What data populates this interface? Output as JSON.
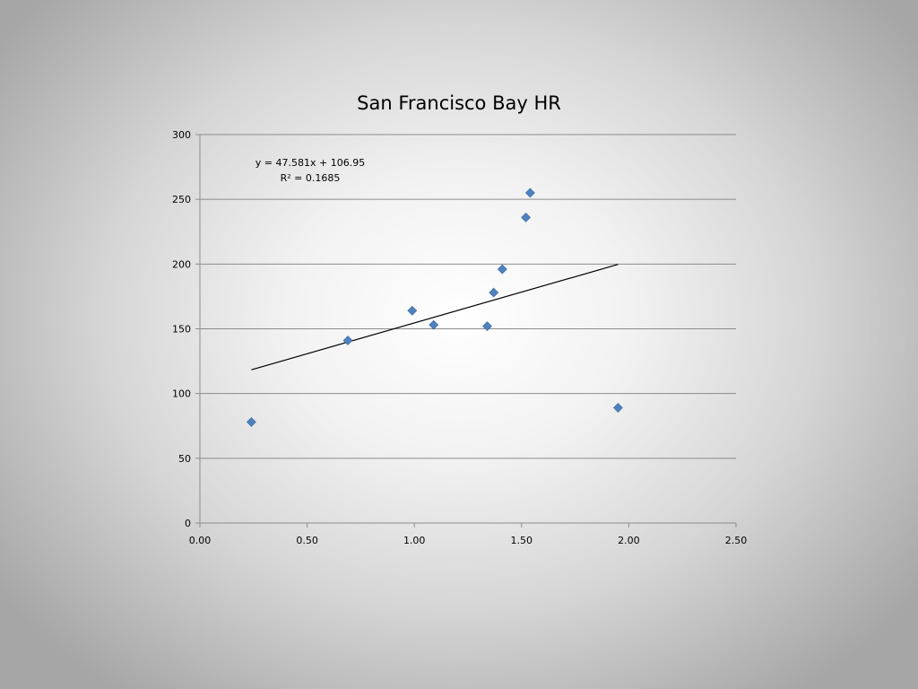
{
  "chart_data": {
    "type": "scatter",
    "title": "San Francisco Bay HR",
    "xlabel": "",
    "ylabel": "",
    "xlim": [
      0,
      2.5
    ],
    "ylim": [
      0,
      300
    ],
    "x_ticks": [
      "0.00",
      "0.50",
      "1.00",
      "1.50",
      "2.00",
      "2.50"
    ],
    "y_ticks": [
      "0",
      "50",
      "100",
      "150",
      "200",
      "250",
      "300"
    ],
    "grid": "horizontal",
    "legend": "none",
    "series": [
      {
        "color": "#4f81bd",
        "marker": "diamond",
        "points": [
          {
            "x": 0.24,
            "y": 78
          },
          {
            "x": 0.69,
            "y": 141
          },
          {
            "x": 0.99,
            "y": 164
          },
          {
            "x": 1.09,
            "y": 153
          },
          {
            "x": 1.34,
            "y": 152
          },
          {
            "x": 1.37,
            "y": 178
          },
          {
            "x": 1.41,
            "y": 196
          },
          {
            "x": 1.52,
            "y": 236
          },
          {
            "x": 1.54,
            "y": 255
          },
          {
            "x": 1.95,
            "y": 89
          }
        ]
      }
    ],
    "trendline": {
      "type": "linear",
      "slope": 47.581,
      "intercept": 106.95,
      "x_range": [
        0.24,
        1.95
      ],
      "color": "#000000",
      "equation_label": "y = 47.581x + 106.95",
      "r2_label": "R² = 0.1685"
    }
  }
}
